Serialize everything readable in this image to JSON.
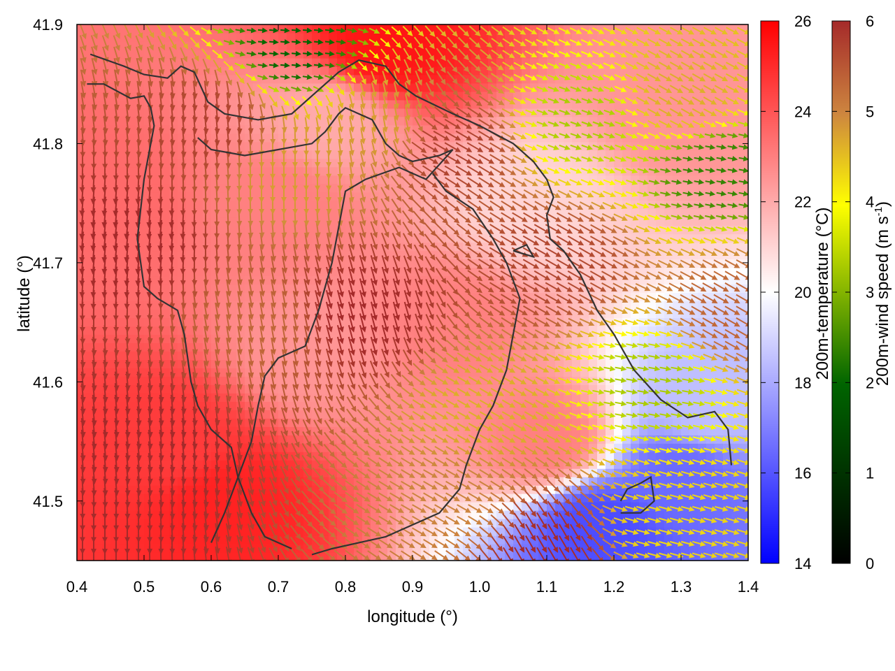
{
  "chart_data": {
    "type": "heatmap",
    "title": "",
    "xlabel": "longitude (°)",
    "ylabel": "latitude (°)",
    "xlim": [
      0.4,
      1.4
    ],
    "ylim": [
      41.45,
      41.9
    ],
    "xticks": [
      "0.4",
      "0.5",
      "0.6",
      "0.7",
      "0.8",
      "0.9",
      "1.0",
      "1.1",
      "1.2",
      "1.3",
      "1.4"
    ],
    "yticks": [
      "41.5",
      "41.6",
      "41.7",
      "41.8",
      "41.9"
    ],
    "colorbars": [
      {
        "label": "200m-temperature (°C)",
        "range": [
          14,
          26
        ],
        "ticks": [
          "14",
          "16",
          "18",
          "20",
          "22",
          "24",
          "26"
        ],
        "palette": [
          "#0000ff",
          "#ffffff",
          "#ff0000"
        ]
      },
      {
        "label": "200m-wind speed (m s-1)",
        "label_base": "200m-wind speed (m s",
        "label_exp": "-1",
        "label_close": ")",
        "range": [
          0,
          6
        ],
        "ticks": [
          "0",
          "1",
          "2",
          "3",
          "4",
          "5",
          "6"
        ],
        "palette": [
          "#000000",
          "#006400",
          "#ffff00",
          "#cd853f",
          "#a52a2a"
        ]
      }
    ],
    "temperature_regions": [
      {
        "lon": 0.55,
        "lat": 41.55,
        "value": 24.6
      },
      {
        "lon": 0.62,
        "lat": 41.5,
        "value": 25.2
      },
      {
        "lon": 0.45,
        "lat": 41.75,
        "value": 23.5
      },
      {
        "lon": 0.7,
        "lat": 41.75,
        "value": 23.0
      },
      {
        "lon": 0.86,
        "lat": 41.88,
        "value": 25.5
      },
      {
        "lon": 0.95,
        "lat": 41.65,
        "value": 23.0
      },
      {
        "lon": 1.1,
        "lat": 41.55,
        "value": 23.0
      },
      {
        "lon": 1.3,
        "lat": 41.83,
        "value": 22.5
      },
      {
        "lon": 1.08,
        "lat": 41.75,
        "value": 21.0
      },
      {
        "lon": 1.18,
        "lat": 41.48,
        "value": 15.8
      },
      {
        "lon": 1.3,
        "lat": 41.52,
        "value": 16.5
      },
      {
        "lon": 1.34,
        "lat": 41.58,
        "value": 18.5
      },
      {
        "lon": 0.75,
        "lat": 41.62,
        "value": 22.5
      },
      {
        "lon": 0.78,
        "lat": 41.82,
        "value": 22.0
      }
    ],
    "wind_regions": [
      {
        "lon": 0.4,
        "lat": 41.45,
        "speed": 6.0,
        "dir": 90
      },
      {
        "lon": 0.5,
        "lat": 41.55,
        "speed": 6.0,
        "dir": 95
      },
      {
        "lon": 0.48,
        "lat": 41.72,
        "speed": 6.0,
        "dir": 85
      },
      {
        "lon": 0.6,
        "lat": 41.82,
        "speed": 5.6,
        "dir": 95
      },
      {
        "lon": 0.67,
        "lat": 41.65,
        "speed": 5.0,
        "dir": 100
      },
      {
        "lon": 0.72,
        "lat": 41.78,
        "speed": 4.2,
        "dir": 90
      },
      {
        "lon": 0.86,
        "lat": 41.82,
        "speed": 4.2,
        "dir": 100
      },
      {
        "lon": 0.82,
        "lat": 41.66,
        "speed": 6.0,
        "dir": 105
      },
      {
        "lon": 0.72,
        "lat": 41.88,
        "speed": 1.5,
        "dir": 175
      },
      {
        "lon": 0.95,
        "lat": 41.8,
        "speed": 5.6,
        "dir": 150
      },
      {
        "lon": 1.15,
        "lat": 41.82,
        "speed": 2.5,
        "dir": 160
      },
      {
        "lon": 1.3,
        "lat": 41.84,
        "speed": 4.0,
        "dir": 150
      },
      {
        "lon": 1.35,
        "lat": 41.78,
        "speed": 1.8,
        "dir": 170
      },
      {
        "lon": 1.1,
        "lat": 41.7,
        "speed": 5.5,
        "dir": 150
      },
      {
        "lon": 1.0,
        "lat": 41.58,
        "speed": 4.0,
        "dir": 150
      },
      {
        "lon": 1.25,
        "lat": 41.6,
        "speed": 2.5,
        "dir": 170
      },
      {
        "lon": 1.27,
        "lat": 41.48,
        "speed": 3.5,
        "dir": 165
      },
      {
        "lon": 0.95,
        "lat": 41.5,
        "speed": 4.5,
        "dir": 150
      },
      {
        "lon": 1.1,
        "lat": 41.46,
        "speed": 6.0,
        "dir": 120
      },
      {
        "lon": 1.38,
        "lat": 41.66,
        "speed": 5.0,
        "dir": 150
      }
    ],
    "contours": [
      [
        [
          0.42,
          41.875
        ],
        [
          0.47,
          41.865
        ],
        [
          0.5,
          41.858
        ],
        [
          0.535,
          41.855
        ],
        [
          0.555,
          41.865
        ],
        [
          0.575,
          41.86
        ],
        [
          0.595,
          41.835
        ],
        [
          0.62,
          41.825
        ],
        [
          0.67,
          41.82
        ],
        [
          0.72,
          41.825
        ],
        [
          0.76,
          41.845
        ],
        [
          0.79,
          41.86
        ],
        [
          0.82,
          41.87
        ],
        [
          0.86,
          41.865
        ],
        [
          0.88,
          41.85
        ],
        [
          0.905,
          41.84
        ],
        [
          0.96,
          41.825
        ],
        [
          1.0,
          41.815
        ],
        [
          1.05,
          41.8
        ],
        [
          1.08,
          41.785
        ],
        [
          1.1,
          41.77
        ],
        [
          1.11,
          41.755
        ],
        [
          1.1,
          41.74
        ],
        [
          1.105,
          41.72
        ],
        [
          1.125,
          41.71
        ],
        [
          1.15,
          41.69
        ],
        [
          1.175,
          41.66
        ],
        [
          1.2,
          41.64
        ],
        [
          1.23,
          41.61
        ],
        [
          1.27,
          41.585
        ],
        [
          1.31,
          41.57
        ],
        [
          1.35,
          41.575
        ],
        [
          1.37,
          41.56
        ],
        [
          1.375,
          41.53
        ]
      ],
      [
        [
          0.415,
          41.85
        ],
        [
          0.44,
          41.85
        ],
        [
          0.48,
          41.838
        ],
        [
          0.5,
          41.84
        ],
        [
          0.51,
          41.83
        ],
        [
          0.515,
          41.815
        ],
        [
          0.5,
          41.77
        ],
        [
          0.49,
          41.72
        ],
        [
          0.5,
          41.68
        ],
        [
          0.52,
          41.67
        ],
        [
          0.55,
          41.66
        ],
        [
          0.56,
          41.64
        ],
        [
          0.57,
          41.6
        ],
        [
          0.58,
          41.58
        ],
        [
          0.6,
          41.56
        ],
        [
          0.63,
          41.545
        ],
        [
          0.64,
          41.52
        ],
        [
          0.66,
          41.49
        ],
        [
          0.68,
          41.47
        ],
        [
          0.72,
          41.46
        ]
      ],
      [
        [
          0.58,
          41.805
        ],
        [
          0.6,
          41.795
        ],
        [
          0.65,
          41.79
        ],
        [
          0.7,
          41.795
        ],
        [
          0.75,
          41.8
        ],
        [
          0.77,
          41.81
        ],
        [
          0.79,
          41.825
        ],
        [
          0.8,
          41.83
        ],
        [
          0.84,
          41.82
        ],
        [
          0.86,
          41.8
        ],
        [
          0.88,
          41.79
        ],
        [
          0.9,
          41.785
        ],
        [
          0.94,
          41.79
        ],
        [
          0.96,
          41.795
        ],
        [
          0.92,
          41.77
        ],
        [
          0.88,
          41.78
        ],
        [
          0.83,
          41.77
        ],
        [
          0.8,
          41.76
        ],
        [
          0.79,
          41.73
        ],
        [
          0.78,
          41.7
        ],
        [
          0.76,
          41.66
        ],
        [
          0.74,
          41.63
        ],
        [
          0.7,
          41.62
        ],
        [
          0.68,
          41.605
        ],
        [
          0.67,
          41.58
        ],
        [
          0.66,
          41.55
        ],
        [
          0.64,
          41.52
        ],
        [
          0.62,
          41.49
        ],
        [
          0.6,
          41.465
        ]
      ],
      [
        [
          0.93,
          41.775
        ],
        [
          0.95,
          41.76
        ],
        [
          0.99,
          41.745
        ],
        [
          1.02,
          41.72
        ],
        [
          1.04,
          41.7
        ],
        [
          1.05,
          41.685
        ],
        [
          1.06,
          41.67
        ],
        [
          1.05,
          41.64
        ],
        [
          1.04,
          41.61
        ],
        [
          1.02,
          41.58
        ],
        [
          1.0,
          41.56
        ],
        [
          0.98,
          41.53
        ],
        [
          0.97,
          41.51
        ],
        [
          0.94,
          41.49
        ],
        [
          0.9,
          41.48
        ],
        [
          0.86,
          41.47
        ],
        [
          0.82,
          41.465
        ],
        [
          0.78,
          41.46
        ],
        [
          0.75,
          41.455
        ]
      ],
      [
        [
          1.21,
          41.49
        ],
        [
          1.24,
          41.49
        ],
        [
          1.26,
          41.5
        ],
        [
          1.255,
          41.52
        ],
        [
          1.24,
          41.515
        ],
        [
          1.22,
          41.51
        ],
        [
          1.21,
          41.5
        ]
      ],
      [
        [
          1.05,
          41.71
        ],
        [
          1.08,
          41.705
        ],
        [
          1.07,
          41.715
        ],
        [
          1.05,
          41.71
        ]
      ]
    ]
  }
}
